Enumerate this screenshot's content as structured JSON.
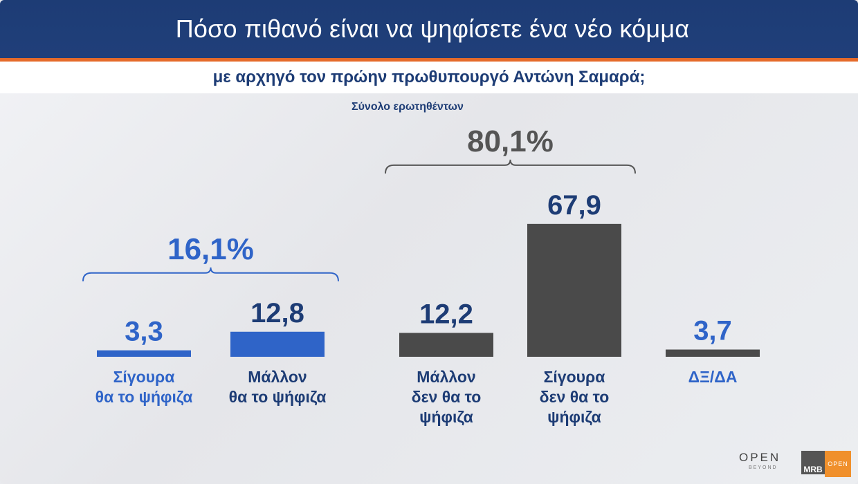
{
  "header": {
    "title": "Πόσο πιθανό είναι να ψηφίσετε ένα νέο κόμμα",
    "subtitle": "με αρχηγό τον πρώην πρωθυπουργό Αντώνη Σαμαρά;"
  },
  "base_label": "Σύνολο ερωτηθέντων",
  "colors": {
    "blue": "#1d3c75",
    "bright_blue": "#2f64c8",
    "gray": "#4a4a4a",
    "accent": "#e56a2a"
  },
  "chart_data": {
    "type": "bar",
    "categories": [
      "Σίγουρα\nθα το ψήφιζα",
      "Μάλλον\nθα το ψήφιζα",
      "Μάλλον\nδεν θα το\nψήφιζα",
      "Σίγουρα\nδεν θα το\nψήφιζα",
      "ΔΞ/ΔΑ"
    ],
    "values": [
      3.3,
      12.8,
      12.2,
      67.9,
      3.7
    ],
    "value_labels": [
      "3,3",
      "12,8",
      "12,2",
      "67,9",
      "3,7"
    ],
    "bar_colors": [
      "#2f64c8",
      "#2f64c8",
      "#4a4a4a",
      "#4a4a4a",
      "#4a4a4a"
    ],
    "label_colors": [
      "#2f64c8",
      "#1d3c75",
      "#1d3c75",
      "#1d3c75",
      "#2f64c8"
    ],
    "groups": [
      {
        "label": "16,1%",
        "from": 0,
        "to": 1,
        "color": "#2f64c8"
      },
      {
        "label": "80,1%",
        "from": 2,
        "to": 3,
        "color": "#555555"
      }
    ]
  },
  "logos": {
    "open": "OPEN",
    "open_sub": "BEYOND",
    "mrb": "MRB",
    "tv": "OPEN"
  }
}
